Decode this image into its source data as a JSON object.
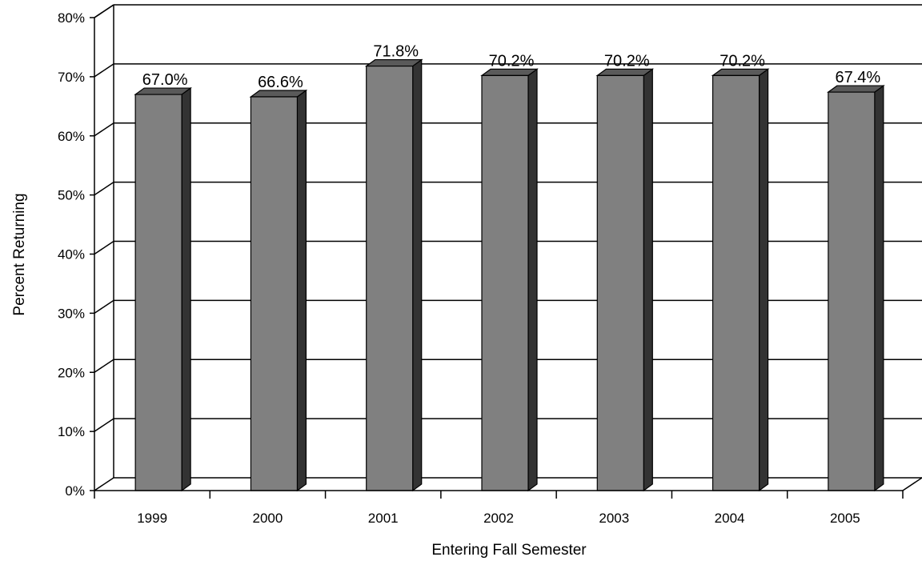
{
  "chart_data": {
    "type": "bar",
    "style": "3d-column",
    "categories": [
      "1999",
      "2000",
      "2001",
      "2002",
      "2003",
      "2004",
      "2005"
    ],
    "values": [
      67.0,
      66.6,
      71.8,
      70.2,
      70.2,
      70.2,
      67.4
    ],
    "data_labels": [
      "67.0%",
      "66.6%",
      "71.8%",
      "70.2%",
      "70.2%",
      "70.2%",
      "67.4%"
    ],
    "xlabel": "Entering Fall Semester",
    "ylabel": "Percent Returning",
    "ylim": [
      0,
      80
    ],
    "y_ticks": [
      0,
      10,
      20,
      30,
      40,
      50,
      60,
      70,
      80
    ],
    "y_tick_labels": [
      "0%",
      "10%",
      "20%",
      "30%",
      "40%",
      "50%",
      "60%",
      "70%",
      "80%"
    ],
    "grid": true,
    "legend": "none",
    "colors": {
      "bar_front": "#808080",
      "bar_top": "#5a5a5a",
      "bar_side": "#333333",
      "grid": "#000000"
    }
  }
}
